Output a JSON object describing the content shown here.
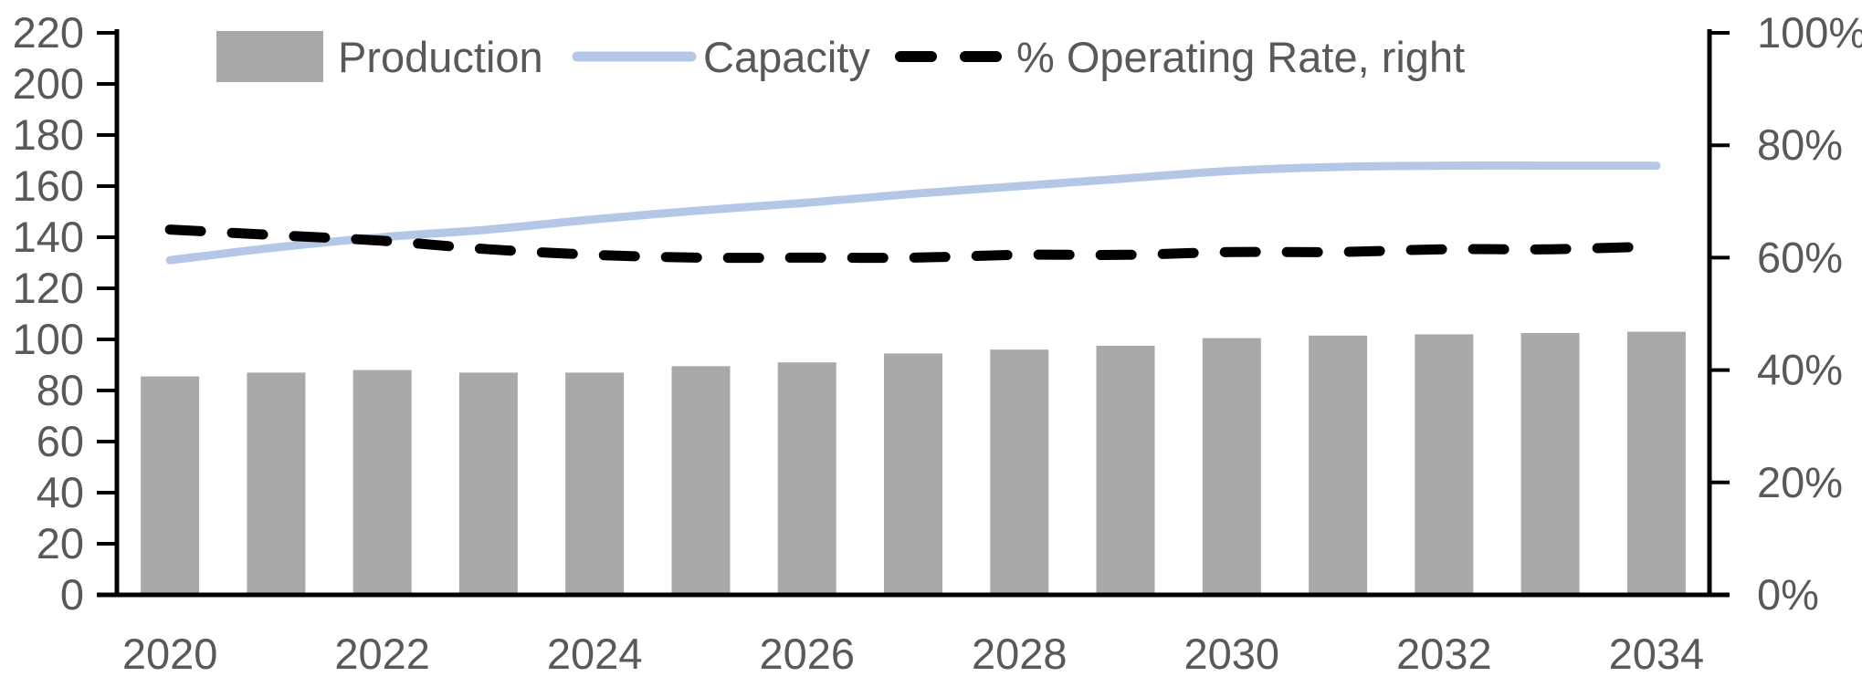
{
  "chart_data": {
    "type": "combo_bar_line",
    "title": "",
    "categories": [
      2020,
      2021,
      2022,
      2023,
      2024,
      2025,
      2026,
      2027,
      2028,
      2029,
      2030,
      2031,
      2032,
      2033,
      2034
    ],
    "series": [
      {
        "name": "Production",
        "type": "bar",
        "axis": "left",
        "color": "#A9A9A9",
        "values": [
          85.5,
          87,
          88,
          87,
          87,
          89.5,
          91,
          94.5,
          96,
          97.5,
          100.5,
          101.5,
          102,
          102.5,
          103
        ]
      },
      {
        "name": "Capacity",
        "type": "line",
        "axis": "left",
        "color": "#B4C7E7",
        "values": [
          131,
          136,
          140,
          143,
          147,
          150.5,
          153.5,
          157,
          160,
          163,
          166,
          167.5,
          168,
          168,
          168
        ]
      },
      {
        "name": "% Operating Rate, right",
        "type": "dashed-line",
        "axis": "right",
        "color": "#000000",
        "values": [
          65,
          64,
          63,
          61.5,
          60.5,
          60,
          60,
          60,
          60.5,
          60.5,
          61,
          61,
          61.5,
          61.5,
          62
        ]
      }
    ],
    "left_axis": {
      "min": 0,
      "max": 220,
      "step": 20,
      "tick_labels": [
        "0",
        "20",
        "40",
        "60",
        "80",
        "100",
        "120",
        "140",
        "160",
        "180",
        "200",
        "220"
      ]
    },
    "right_axis": {
      "min": 0,
      "max": 100,
      "step": 20,
      "tick_labels": [
        "0%",
        "20%",
        "40%",
        "60%",
        "80%",
        "100%"
      ]
    },
    "x_axis": {
      "tick_labels": [
        "2020",
        "2022",
        "2024",
        "2026",
        "2028",
        "2030",
        "2032",
        "2034"
      ],
      "labeled_category_indices": [
        0,
        2,
        4,
        6,
        8,
        10,
        12,
        14
      ]
    },
    "legend_position": "top",
    "grid": false
  },
  "legend": {
    "items": [
      {
        "label": "Production",
        "swatch": "bar",
        "color": "#A9A9A9"
      },
      {
        "label": "Capacity",
        "swatch": "line",
        "color": "#B4C7E7"
      },
      {
        "label": "% Operating Rate, right",
        "swatch": "dashes",
        "color": "#000000"
      }
    ]
  },
  "styles": {
    "background": "#FFFFFF",
    "text_color": "#595959",
    "axis_color": "#000000"
  }
}
